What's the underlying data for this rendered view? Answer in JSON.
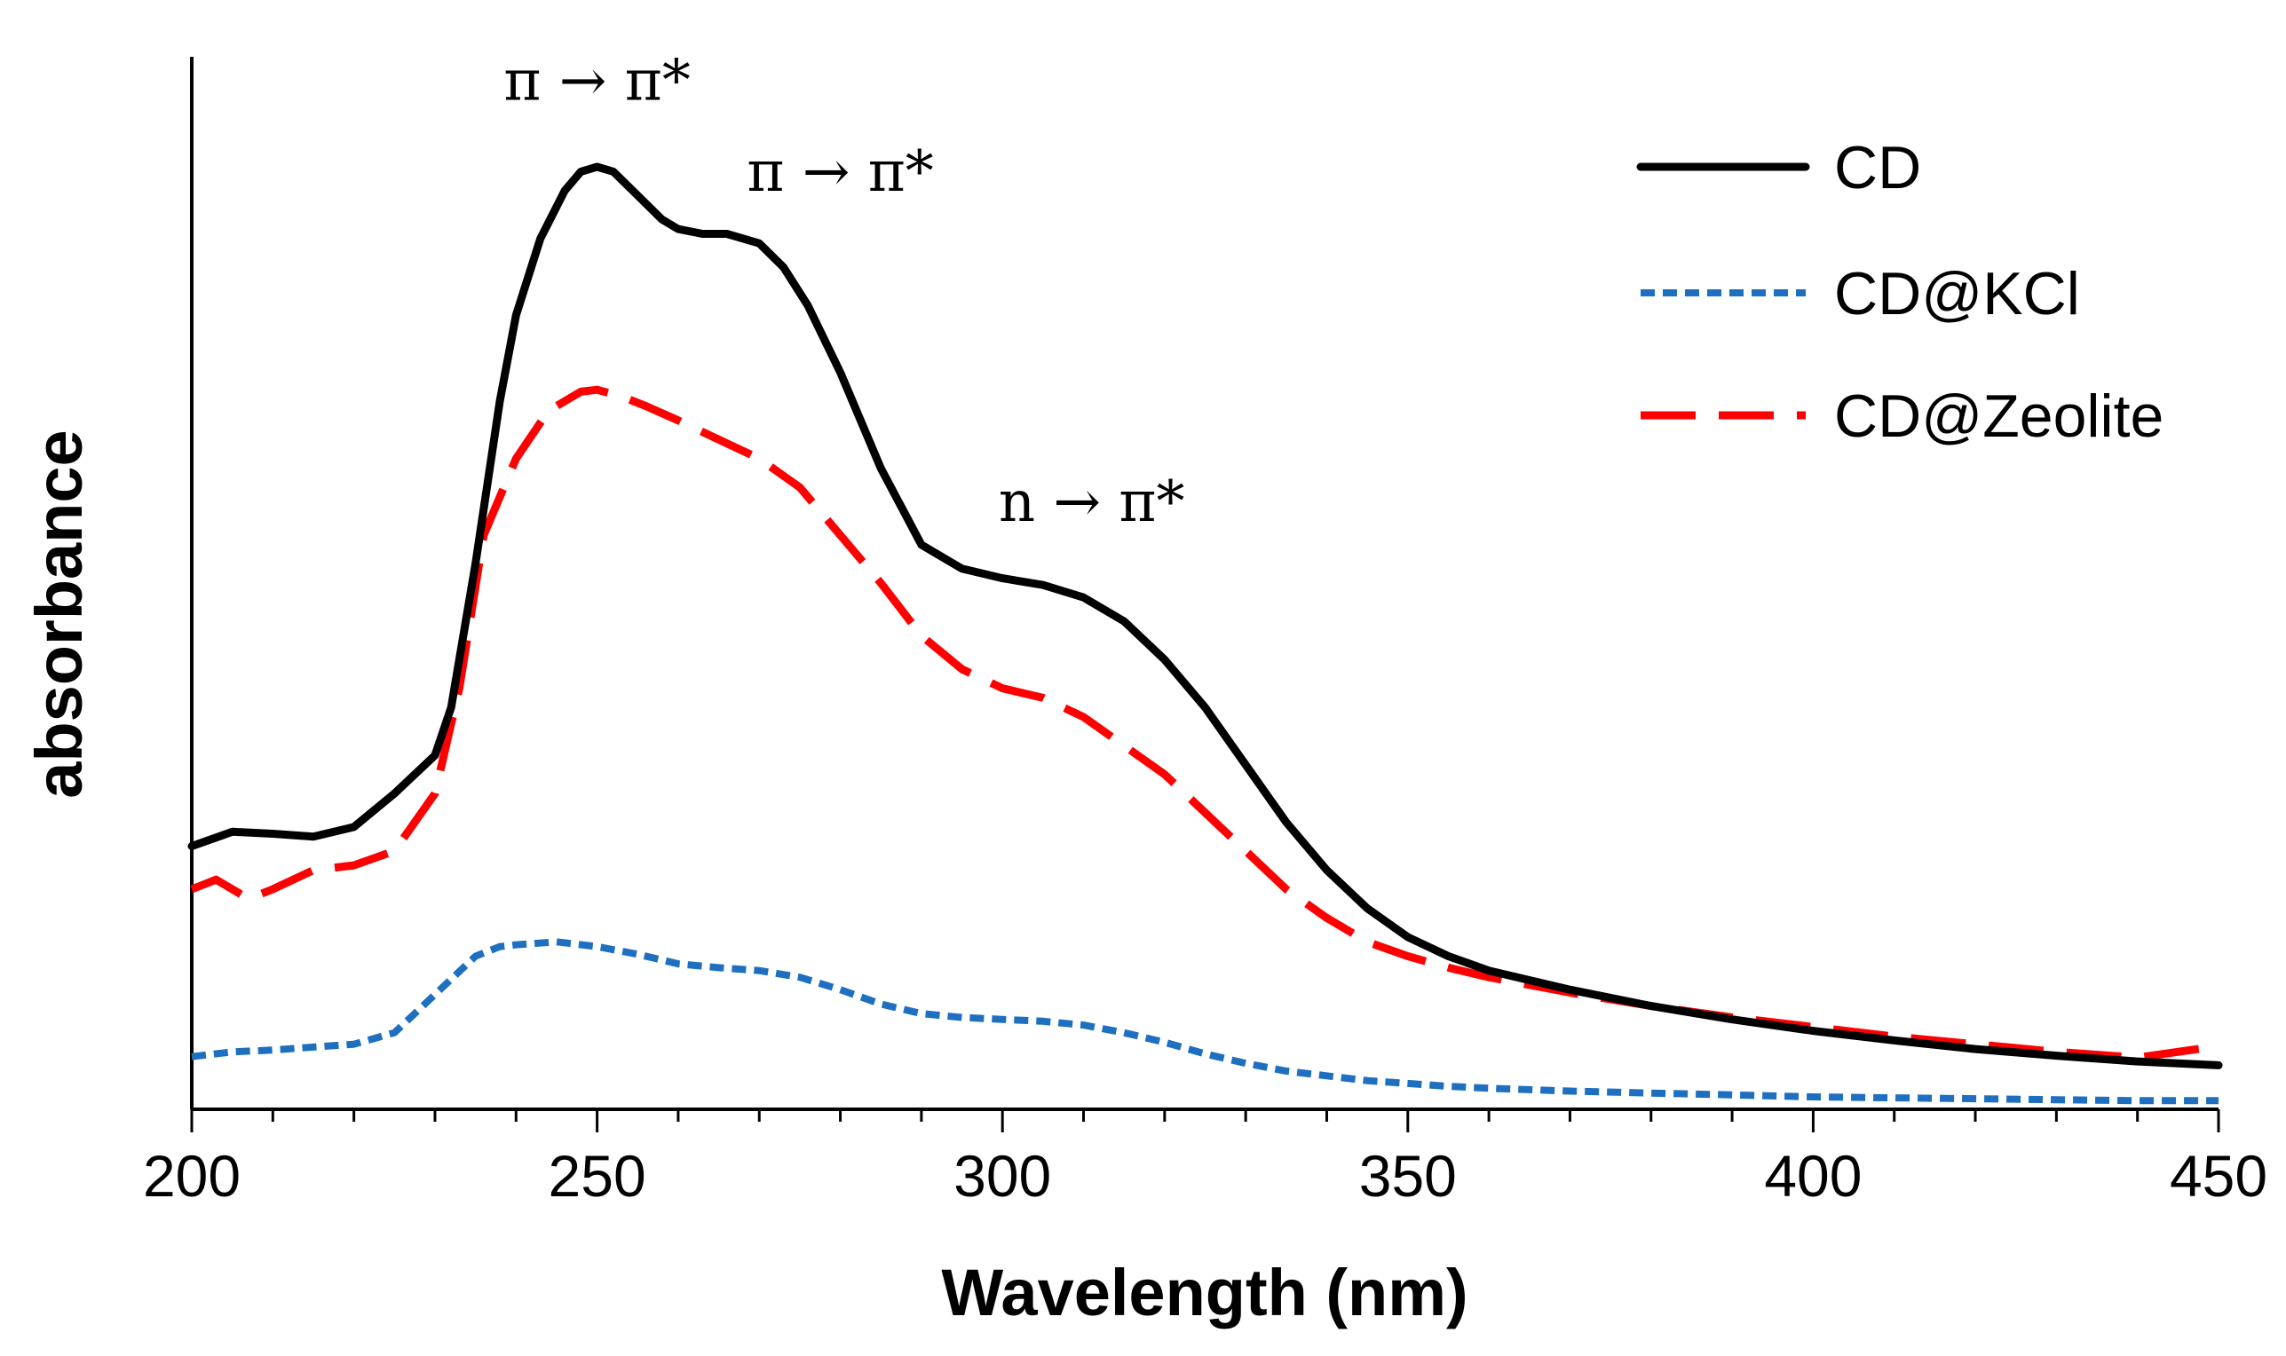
{
  "chart_data": {
    "type": "line",
    "title": "",
    "xlabel": "Wavelength (nm)",
    "ylabel": "absorbance",
    "xlim": [
      200,
      450
    ],
    "ylim": [
      0,
      1
    ],
    "x_ticks_major": [
      200,
      250,
      300,
      350,
      400,
      450
    ],
    "x_tick_labels": [
      "200",
      "250",
      "300",
      "350",
      "400",
      "450"
    ],
    "x_minor_step": 10,
    "y_ticks": "none",
    "grid": false,
    "legend": {
      "position": "top-right"
    },
    "series": [
      {
        "name": "CD",
        "style": "solid",
        "color": "#000000",
        "x": [
          200,
          205,
          210,
          215,
          220,
          225,
          230,
          232,
          235,
          238,
          240,
          243,
          246,
          248,
          250,
          252,
          255,
          258,
          260,
          263,
          266,
          270,
          273,
          276,
          280,
          285,
          290,
          295,
          300,
          305,
          310,
          315,
          320,
          325,
          330,
          335,
          340,
          345,
          350,
          355,
          360,
          370,
          380,
          390,
          400,
          410,
          420,
          430,
          440,
          450
        ],
        "y": [
          0.275,
          0.29,
          0.288,
          0.285,
          0.295,
          0.33,
          0.37,
          0.42,
          0.57,
          0.74,
          0.83,
          0.91,
          0.96,
          0.98,
          0.985,
          0.98,
          0.955,
          0.93,
          0.92,
          0.915,
          0.915,
          0.905,
          0.88,
          0.84,
          0.77,
          0.67,
          0.59,
          0.565,
          0.555,
          0.548,
          0.535,
          0.51,
          0.47,
          0.42,
          0.36,
          0.3,
          0.25,
          0.21,
          0.18,
          0.16,
          0.145,
          0.125,
          0.108,
          0.094,
          0.082,
          0.072,
          0.063,
          0.056,
          0.05,
          0.046
        ]
      },
      {
        "name": "CD@KCl",
        "style": "dotted",
        "color": "#1f6fc0",
        "x": [
          200,
          205,
          210,
          215,
          220,
          225,
          230,
          235,
          238,
          240,
          245,
          250,
          255,
          260,
          265,
          270,
          275,
          280,
          285,
          290,
          295,
          300,
          305,
          310,
          315,
          320,
          325,
          330,
          335,
          340,
          345,
          350,
          355,
          360,
          370,
          380,
          390,
          400,
          410,
          420,
          430,
          440,
          450
        ],
        "y": [
          0.055,
          0.06,
          0.062,
          0.065,
          0.068,
          0.08,
          0.12,
          0.16,
          0.17,
          0.172,
          0.175,
          0.17,
          0.162,
          0.152,
          0.148,
          0.145,
          0.138,
          0.125,
          0.11,
          0.1,
          0.096,
          0.094,
          0.092,
          0.088,
          0.08,
          0.07,
          0.058,
          0.048,
          0.04,
          0.035,
          0.03,
          0.027,
          0.024,
          0.022,
          0.019,
          0.017,
          0.015,
          0.013,
          0.012,
          0.011,
          0.01,
          0.009,
          0.009
        ]
      },
      {
        "name": "CD@Zeolite",
        "style": "dashed",
        "color": "#ff0000",
        "x": [
          200,
          203,
          207,
          210,
          215,
          220,
          225,
          230,
          233,
          236,
          240,
          244,
          248,
          250,
          253,
          256,
          260,
          265,
          270,
          275,
          280,
          285,
          290,
          295,
          300,
          305,
          310,
          315,
          320,
          325,
          330,
          335,
          340,
          345,
          350,
          355,
          360,
          370,
          380,
          390,
          400,
          410,
          420,
          430,
          440,
          450
        ],
        "y": [
          0.23,
          0.24,
          0.22,
          0.23,
          0.25,
          0.255,
          0.27,
          0.33,
          0.44,
          0.6,
          0.68,
          0.73,
          0.75,
          0.752,
          0.745,
          0.735,
          0.72,
          0.7,
          0.68,
          0.65,
          0.6,
          0.55,
          0.495,
          0.46,
          0.44,
          0.43,
          0.41,
          0.38,
          0.35,
          0.31,
          0.27,
          0.23,
          0.2,
          0.175,
          0.16,
          0.148,
          0.138,
          0.122,
          0.108,
          0.096,
          0.086,
          0.076,
          0.068,
          0.06,
          0.054,
          0.066
        ]
      }
    ],
    "annotations": [
      {
        "text": "π → π*",
        "x": 250,
        "y": 1.055
      },
      {
        "text": "π → π*",
        "x": 280,
        "y": 0.96
      },
      {
        "text": "n → π*",
        "x": 311,
        "y": 0.615
      }
    ]
  }
}
